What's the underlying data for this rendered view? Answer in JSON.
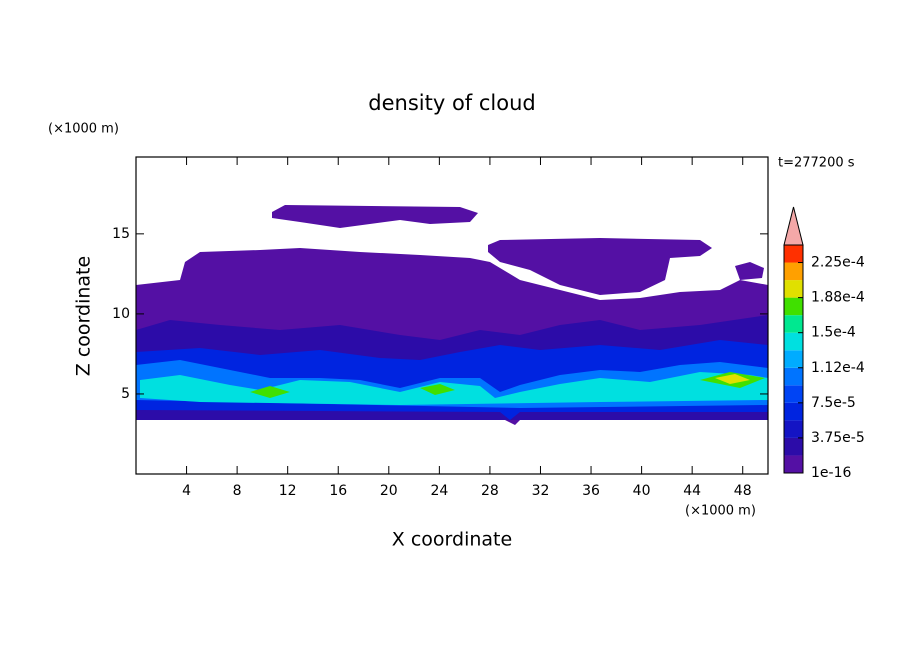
{
  "chart_data": {
    "type": "contour",
    "title": "density of cloud",
    "xlabel": "X coordinate",
    "ylabel": "Z coordinate",
    "x_unit": "(×1000 m)",
    "y_unit": "(×1000 m)",
    "annotation": "t=277200 s",
    "xlim": [
      0,
      50
    ],
    "ylim": [
      0,
      19.8
    ],
    "xticks": [
      4,
      8,
      12,
      16,
      20,
      24,
      28,
      32,
      36,
      40,
      44,
      48
    ],
    "yticks": [
      5,
      10,
      15
    ],
    "colorbar": {
      "levels": [
        1e-16,
        1.875e-05,
        3.75e-05,
        5.625e-05,
        7.5e-05,
        9.375e-05,
        0.0001125,
        0.00013125,
        0.00015,
        0.00016875,
        0.0001875,
        0.00020625,
        0.000225,
        0.00024375
      ],
      "colors": [
        "#5410a4",
        "#2c0ca8",
        "#1414c4",
        "#0024e0",
        "#0044f4",
        "#0074ff",
        "#00acff",
        "#00e0e0",
        "#00e890",
        "#40e000",
        "#e0e000",
        "#ffa000",
        "#ff3000"
      ],
      "extend_color": "#f4a8a8",
      "ticks": [
        1e-16,
        {
          "value": 3.75e-05,
          "label": "3.75e-5"
        },
        {
          "value": 7.5e-05,
          "label": "7.5e-5"
        },
        {
          "value": 0.0001125,
          "label": "1.12e-4"
        },
        {
          "value": 0.00015,
          "label": "1.5e-4"
        },
        {
          "value": 0.0001875,
          "label": "1.88e-4"
        },
        {
          "value": 0.000225,
          "label": "2.25e-4"
        }
      ]
    }
  }
}
